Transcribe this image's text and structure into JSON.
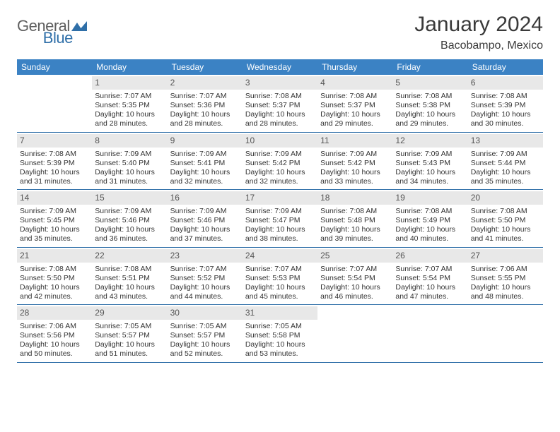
{
  "brand": {
    "text_general": "General",
    "text_blue": "Blue",
    "logo_fill": "#2f6fa8"
  },
  "header": {
    "title": "January 2024",
    "location": "Bacobampo, Mexico"
  },
  "styling": {
    "header_bg": "#3b82c4",
    "header_fg": "#ffffff",
    "daynum_bg": "#e8e8e8",
    "rule_color": "#2f6fa8",
    "text_color": "#333333",
    "title_color": "#3a3a3a"
  },
  "weekdays": [
    "Sunday",
    "Monday",
    "Tuesday",
    "Wednesday",
    "Thursday",
    "Friday",
    "Saturday"
  ],
  "weeks": [
    [
      {
        "empty": true
      },
      {
        "num": "1",
        "sunrise": "Sunrise: 7:07 AM",
        "sunset": "Sunset: 5:35 PM",
        "day_a": "Daylight: 10 hours",
        "day_b": "and 28 minutes."
      },
      {
        "num": "2",
        "sunrise": "Sunrise: 7:07 AM",
        "sunset": "Sunset: 5:36 PM",
        "day_a": "Daylight: 10 hours",
        "day_b": "and 28 minutes."
      },
      {
        "num": "3",
        "sunrise": "Sunrise: 7:08 AM",
        "sunset": "Sunset: 5:37 PM",
        "day_a": "Daylight: 10 hours",
        "day_b": "and 28 minutes."
      },
      {
        "num": "4",
        "sunrise": "Sunrise: 7:08 AM",
        "sunset": "Sunset: 5:37 PM",
        "day_a": "Daylight: 10 hours",
        "day_b": "and 29 minutes."
      },
      {
        "num": "5",
        "sunrise": "Sunrise: 7:08 AM",
        "sunset": "Sunset: 5:38 PM",
        "day_a": "Daylight: 10 hours",
        "day_b": "and 29 minutes."
      },
      {
        "num": "6",
        "sunrise": "Sunrise: 7:08 AM",
        "sunset": "Sunset: 5:39 PM",
        "day_a": "Daylight: 10 hours",
        "day_b": "and 30 minutes."
      }
    ],
    [
      {
        "num": "7",
        "sunrise": "Sunrise: 7:08 AM",
        "sunset": "Sunset: 5:39 PM",
        "day_a": "Daylight: 10 hours",
        "day_b": "and 31 minutes."
      },
      {
        "num": "8",
        "sunrise": "Sunrise: 7:09 AM",
        "sunset": "Sunset: 5:40 PM",
        "day_a": "Daylight: 10 hours",
        "day_b": "and 31 minutes."
      },
      {
        "num": "9",
        "sunrise": "Sunrise: 7:09 AM",
        "sunset": "Sunset: 5:41 PM",
        "day_a": "Daylight: 10 hours",
        "day_b": "and 32 minutes."
      },
      {
        "num": "10",
        "sunrise": "Sunrise: 7:09 AM",
        "sunset": "Sunset: 5:42 PM",
        "day_a": "Daylight: 10 hours",
        "day_b": "and 32 minutes."
      },
      {
        "num": "11",
        "sunrise": "Sunrise: 7:09 AM",
        "sunset": "Sunset: 5:42 PM",
        "day_a": "Daylight: 10 hours",
        "day_b": "and 33 minutes."
      },
      {
        "num": "12",
        "sunrise": "Sunrise: 7:09 AM",
        "sunset": "Sunset: 5:43 PM",
        "day_a": "Daylight: 10 hours",
        "day_b": "and 34 minutes."
      },
      {
        "num": "13",
        "sunrise": "Sunrise: 7:09 AM",
        "sunset": "Sunset: 5:44 PM",
        "day_a": "Daylight: 10 hours",
        "day_b": "and 35 minutes."
      }
    ],
    [
      {
        "num": "14",
        "sunrise": "Sunrise: 7:09 AM",
        "sunset": "Sunset: 5:45 PM",
        "day_a": "Daylight: 10 hours",
        "day_b": "and 35 minutes."
      },
      {
        "num": "15",
        "sunrise": "Sunrise: 7:09 AM",
        "sunset": "Sunset: 5:46 PM",
        "day_a": "Daylight: 10 hours",
        "day_b": "and 36 minutes."
      },
      {
        "num": "16",
        "sunrise": "Sunrise: 7:09 AM",
        "sunset": "Sunset: 5:46 PM",
        "day_a": "Daylight: 10 hours",
        "day_b": "and 37 minutes."
      },
      {
        "num": "17",
        "sunrise": "Sunrise: 7:09 AM",
        "sunset": "Sunset: 5:47 PM",
        "day_a": "Daylight: 10 hours",
        "day_b": "and 38 minutes."
      },
      {
        "num": "18",
        "sunrise": "Sunrise: 7:08 AM",
        "sunset": "Sunset: 5:48 PM",
        "day_a": "Daylight: 10 hours",
        "day_b": "and 39 minutes."
      },
      {
        "num": "19",
        "sunrise": "Sunrise: 7:08 AM",
        "sunset": "Sunset: 5:49 PM",
        "day_a": "Daylight: 10 hours",
        "day_b": "and 40 minutes."
      },
      {
        "num": "20",
        "sunrise": "Sunrise: 7:08 AM",
        "sunset": "Sunset: 5:50 PM",
        "day_a": "Daylight: 10 hours",
        "day_b": "and 41 minutes."
      }
    ],
    [
      {
        "num": "21",
        "sunrise": "Sunrise: 7:08 AM",
        "sunset": "Sunset: 5:50 PM",
        "day_a": "Daylight: 10 hours",
        "day_b": "and 42 minutes."
      },
      {
        "num": "22",
        "sunrise": "Sunrise: 7:08 AM",
        "sunset": "Sunset: 5:51 PM",
        "day_a": "Daylight: 10 hours",
        "day_b": "and 43 minutes."
      },
      {
        "num": "23",
        "sunrise": "Sunrise: 7:07 AM",
        "sunset": "Sunset: 5:52 PM",
        "day_a": "Daylight: 10 hours",
        "day_b": "and 44 minutes."
      },
      {
        "num": "24",
        "sunrise": "Sunrise: 7:07 AM",
        "sunset": "Sunset: 5:53 PM",
        "day_a": "Daylight: 10 hours",
        "day_b": "and 45 minutes."
      },
      {
        "num": "25",
        "sunrise": "Sunrise: 7:07 AM",
        "sunset": "Sunset: 5:54 PM",
        "day_a": "Daylight: 10 hours",
        "day_b": "and 46 minutes."
      },
      {
        "num": "26",
        "sunrise": "Sunrise: 7:07 AM",
        "sunset": "Sunset: 5:54 PM",
        "day_a": "Daylight: 10 hours",
        "day_b": "and 47 minutes."
      },
      {
        "num": "27",
        "sunrise": "Sunrise: 7:06 AM",
        "sunset": "Sunset: 5:55 PM",
        "day_a": "Daylight: 10 hours",
        "day_b": "and 48 minutes."
      }
    ],
    [
      {
        "num": "28",
        "sunrise": "Sunrise: 7:06 AM",
        "sunset": "Sunset: 5:56 PM",
        "day_a": "Daylight: 10 hours",
        "day_b": "and 50 minutes."
      },
      {
        "num": "29",
        "sunrise": "Sunrise: 7:05 AM",
        "sunset": "Sunset: 5:57 PM",
        "day_a": "Daylight: 10 hours",
        "day_b": "and 51 minutes."
      },
      {
        "num": "30",
        "sunrise": "Sunrise: 7:05 AM",
        "sunset": "Sunset: 5:57 PM",
        "day_a": "Daylight: 10 hours",
        "day_b": "and 52 minutes."
      },
      {
        "num": "31",
        "sunrise": "Sunrise: 7:05 AM",
        "sunset": "Sunset: 5:58 PM",
        "day_a": "Daylight: 10 hours",
        "day_b": "and 53 minutes."
      },
      {
        "empty": true
      },
      {
        "empty": true
      },
      {
        "empty": true
      }
    ]
  ]
}
